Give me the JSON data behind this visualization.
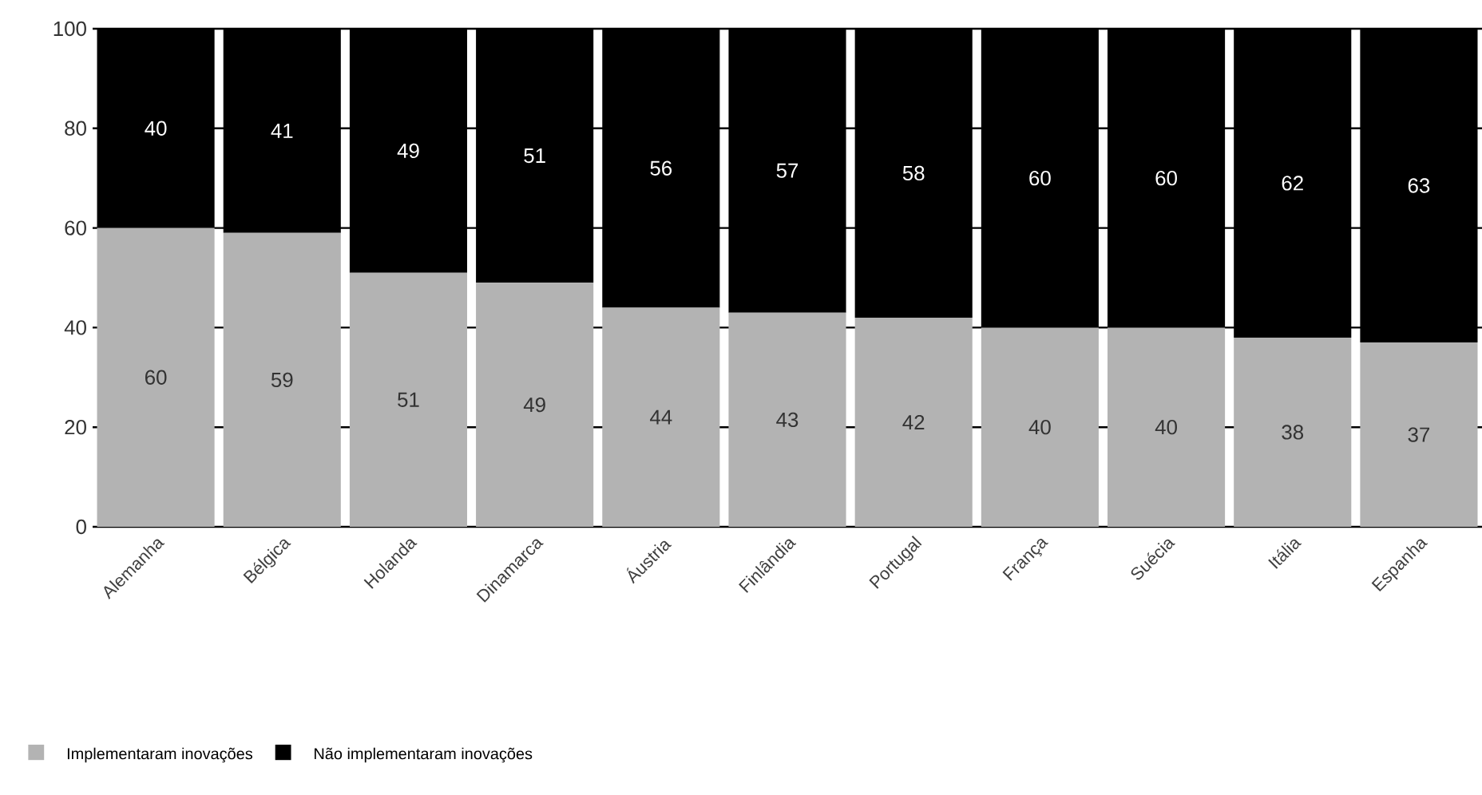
{
  "chart_data": {
    "type": "bar",
    "stacked": true,
    "categories": [
      "Alemanha",
      "Bélgica",
      "Holanda",
      "Dinamarca",
      "Áustria",
      "Finlândia",
      "Portugal",
      "França",
      "Suécia",
      "Itália",
      "Espanha"
    ],
    "series": [
      {
        "name": "Implementaram inovações",
        "color": "#b3b3b3",
        "values": [
          60,
          59,
          51,
          49,
          44,
          43,
          42,
          40,
          40,
          38,
          37
        ]
      },
      {
        "name": "Não implementaram inovações",
        "color": "#000000",
        "values": [
          40,
          41,
          49,
          51,
          56,
          57,
          58,
          60,
          60,
          62,
          63
        ]
      }
    ],
    "ylim": [
      0,
      100
    ],
    "yticks": [
      0,
      20,
      40,
      60,
      80,
      100
    ],
    "grid": "y",
    "legend": "bottom left",
    "data_labels": true
  }
}
